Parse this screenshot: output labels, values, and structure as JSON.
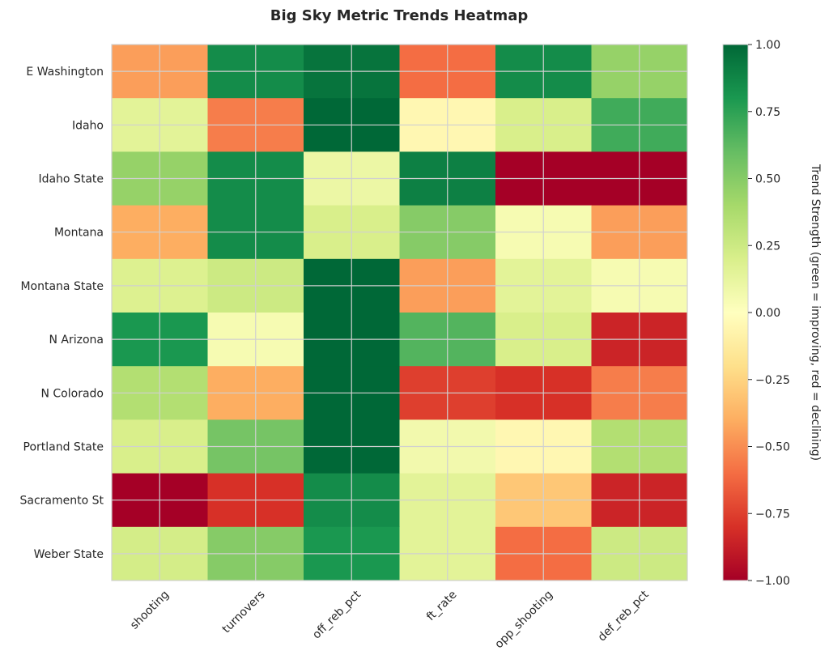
{
  "chart_data": {
    "type": "heatmap",
    "title": "Big Sky Metric Trends Heatmap",
    "rows": [
      "E Washington",
      "Idaho",
      "Idaho State",
      "Montana",
      "Montana State",
      "N Arizona",
      "N Colorado",
      "Portland State",
      "Sacramento St",
      "Weber State"
    ],
    "columns": [
      "shooting",
      "turnovers",
      "off_reb_pct",
      "ft_rate",
      "opp_shooting",
      "def_reb_pct"
    ],
    "values": [
      [
        -0.45,
        0.85,
        0.95,
        -0.6,
        0.85,
        0.45
      ],
      [
        0.15,
        -0.55,
        1.0,
        -0.05,
        0.2,
        0.7
      ],
      [
        0.45,
        0.85,
        0.1,
        0.9,
        -1.0,
        -1.0
      ],
      [
        -0.4,
        0.85,
        0.2,
        0.5,
        0.05,
        -0.45
      ],
      [
        0.18,
        0.25,
        1.0,
        -0.45,
        0.15,
        0.05
      ],
      [
        0.8,
        0.05,
        1.0,
        0.65,
        0.2,
        -0.85
      ],
      [
        0.35,
        -0.4,
        1.0,
        -0.75,
        -0.8,
        -0.55
      ],
      [
        0.2,
        0.55,
        1.0,
        0.07,
        -0.05,
        0.35
      ],
      [
        -1.0,
        -0.8,
        0.85,
        0.15,
        -0.3,
        -0.85
      ],
      [
        0.22,
        0.5,
        0.8,
        0.15,
        -0.6,
        0.25
      ]
    ],
    "colorbar": {
      "label": "Trend Strength (green = improving, red = declining)",
      "ticks": [
        1.0,
        0.75,
        0.5,
        0.25,
        0.0,
        -0.25,
        -0.5,
        -0.75,
        -1.0
      ],
      "tick_labels": [
        "1.00",
        "0.75",
        "0.50",
        "0.25",
        "0.00",
        "−0.25",
        "−0.50",
        "−0.75",
        "−1.00"
      ],
      "vmin": -1.0,
      "vmax": 1.0,
      "colormap": "RdYlGn"
    },
    "grid": true
  }
}
